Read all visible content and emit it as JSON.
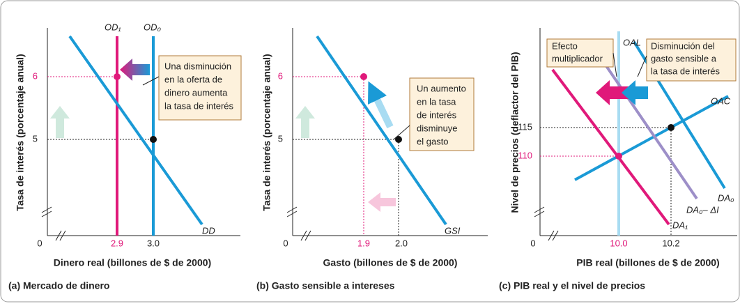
{
  "panels": [
    {
      "caption": "(a) Mercado de dinero",
      "y_label": "Tasa de interés (porcentaje anual)",
      "x_label": "Dinero real (billones de $ de 2000)",
      "origin": "0",
      "y_ticks": [
        "6",
        "5"
      ],
      "x_ticks": [
        "2.9",
        "3.0"
      ],
      "curves": [
        "OD₁",
        "OD₀",
        "DD"
      ],
      "note": [
        "Una disminución",
        "en la oferta de",
        "dinero aumenta",
        "la tasa de interés"
      ]
    },
    {
      "caption": "(b) Gasto sensible a intereses",
      "y_label": "Tasa de interés (porcentaje anual)",
      "x_label": "Gasto (billones de $ de 2000)",
      "origin": "0",
      "y_ticks": [
        "6",
        "5"
      ],
      "x_ticks": [
        "1.9",
        "2.0"
      ],
      "curves": [
        "GSI"
      ],
      "note": [
        "Un aumento",
        "en la tasa",
        "de interés",
        "disminuye",
        "el gasto"
      ]
    },
    {
      "caption": "(c) PIB real y el nivel de precios",
      "y_label": "Nivel de precios (deflactor del PIB)",
      "x_label": "PIB real (billones de $ de 2000)",
      "origin": "0",
      "y_ticks": [
        "115",
        "110"
      ],
      "x_ticks": [
        "10.0",
        "10.2"
      ],
      "curves": [
        "OAL",
        "OAC",
        "DA₀",
        "DA₀– ΔI",
        "DA₁"
      ],
      "note": [
        "Efecto",
        "multiplicador"
      ],
      "note2": [
        "Disminución del",
        "gasto sensible a",
        "la tasa de interés"
      ]
    }
  ]
}
